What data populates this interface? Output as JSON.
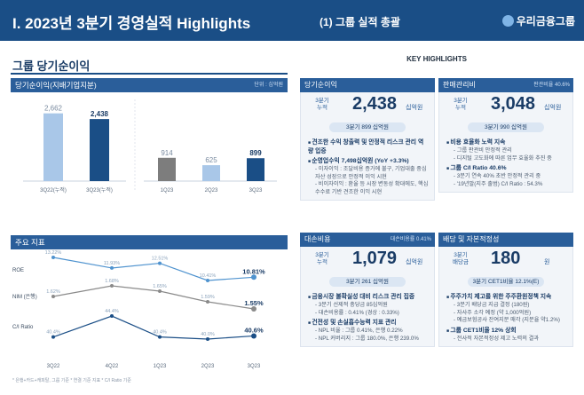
{
  "header": {
    "title": "I. 2023년 3분기 경영실적 Highlights",
    "subtitle": "(1) 그룹 실적 총괄",
    "logo": "우리금융그룹"
  },
  "left": {
    "section_title": "그룹 당기순이익",
    "bar_panel": {
      "label": "당기순이익(지배기업지분)",
      "unit": "단위 : 십억원"
    },
    "indicator_panel": {
      "label": "주요 지표"
    },
    "footnote": "* 은행+카드+캐피탈, 그룹 기준 * 연결 기준 지표 * C/I Ratio 기준"
  },
  "chart_data": [
    {
      "type": "bar",
      "categories": [
        "3Q22(누적)",
        "3Q23(누적)",
        "1Q23",
        "2Q23",
        "3Q23"
      ],
      "values": [
        2662,
        2438,
        914,
        625,
        899
      ],
      "value_labels": [
        "2,662",
        "2,438",
        "914",
        "625",
        "899"
      ],
      "colors": [
        "#a9c7e8",
        "#1a4e86",
        "#7d7d7d",
        "#a9c7e8",
        "#1a4e86"
      ]
    },
    {
      "type": "line",
      "categories": [
        "3Q22",
        "4Q22",
        "1Q23",
        "2Q23",
        "3Q23"
      ],
      "series": [
        {
          "name": "ROE",
          "values": [
            13.22,
            11.93,
            12.51,
            10.41,
            10.81
          ],
          "labels": [
            "13.22%",
            "11.93%",
            "12.51%",
            "10.41%",
            "10.81%"
          ],
          "color": "#4f93cf"
        },
        {
          "name": "NIM (은행)",
          "values": [
            1.62,
            1.68,
            1.65,
            1.59,
            1.55
          ],
          "labels": [
            "1.62%",
            "1.68%",
            "1.65%",
            "1.59%",
            "1.55%"
          ],
          "color": "#8a8a8a"
        },
        {
          "name": "C/I Ratio",
          "values": [
            40.4,
            44.4,
            40.4,
            40.0,
            40.6
          ],
          "labels": [
            "40.4%",
            "44.4%",
            "40.4%",
            "40.0%",
            "40.6%"
          ],
          "color": "#1a4e86"
        }
      ]
    }
  ],
  "highlights": {
    "title": "KEY HIGHLIGHTS",
    "net_income": {
      "head": "당기순이익",
      "q": "3분기 누적",
      "value": "2,438",
      "unit": "십억원",
      "sub": "3분기 899 십억원",
      "bullets": [
        {
          "t": "견조한 수익 창출력 및 안정적 리스크 관리 역량 입증",
          "sub": []
        },
        {
          "t": "순영업수익 7,498십억원 (YoY +3.3%)",
          "sub": [
            "이자이익 : 조달비용 증가에 불구, 기업대출 중심 자산 성장으로 안정적 이익 시현",
            "비이자이익 : 환율 등 시장 변동성 확대에도, 핵심수수료 기반 견조한 이익 시현"
          ]
        }
      ]
    },
    "cost": {
      "head": "판매관리비",
      "tag": "판관비율 40.6%",
      "q": "3분기 누적",
      "value": "3,048",
      "unit": "십억원",
      "sub": "3분기 990 십억원",
      "bullets": [
        {
          "t": "비용 효율화 노력 지속",
          "sub": [
            "그룹 판관비 안정적 관리",
            "디지털 고도화에 따른 업무 효율화 추진 중"
          ]
        },
        {
          "t": "그룹 C/I Ratio 40.6%",
          "sub": [
            "3분기 연속 40% 초반 안정적 관리 중",
            "'19년말(지주 출범) C/I Ratio : 54.3%"
          ]
        }
      ]
    },
    "credit": {
      "head": "대손비용",
      "tag": "대손비용률 0.41%",
      "q": "3분기 누적",
      "value": "1,079",
      "unit": "십억원",
      "sub": "3분기 261 십억원",
      "bullets": [
        {
          "t": "금융시장 불확실성 대비 리스크 관리 집중",
          "sub": [
            "3분기 선제적 충당금 85십억원",
            "대손비용률 : 0.41% (경상 : 0.33%)"
          ]
        },
        {
          "t": "건전성 및 손실흡수능력 지표 관리",
          "sub": [
            "NPL 비율 : 그룹 0.41%, 은행 0.22%",
            "NPL 커버리지 : 그룹 180.0%, 은행 239.0%"
          ]
        }
      ]
    },
    "dividend": {
      "head": "배당 및 자본적정성",
      "q": "3분기 배당금",
      "value": "180",
      "unit": "원",
      "sub": "3분기 CET1비율 12.1%(E)",
      "bullets": [
        {
          "t": "주주가치 제고를 위한 주주환원정책 지속",
          "sub": [
            "3분기 배당금 지급 결정 (180원)",
            "자사주 소각 예정 (약 1,000억원)",
            "예금보험공사 잔여지분 매각 (지분율 약1.2%)"
          ]
        },
        {
          "t": "그룹 CET1비율 12% 상회",
          "sub": [
            "전사적 자본적정성 제고 노력의 결과"
          ]
        }
      ]
    }
  }
}
